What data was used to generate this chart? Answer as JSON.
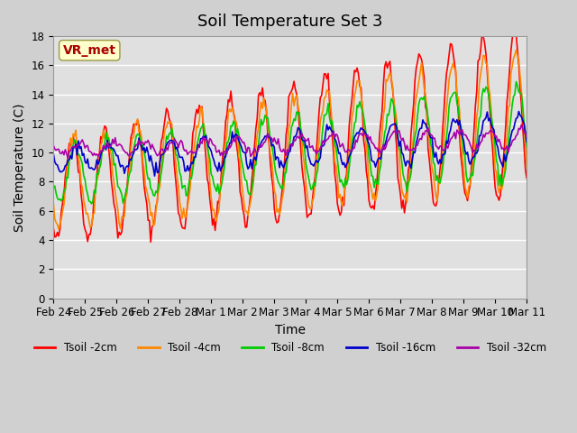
{
  "title": "Soil Temperature Set 3",
  "xlabel": "Time",
  "ylabel": "Soil Temperature (C)",
  "ylim": [
    0,
    18
  ],
  "colors": {
    "Tsoil -2cm": "#ff0000",
    "Tsoil -4cm": "#ff8800",
    "Tsoil -8cm": "#00cc00",
    "Tsoil -16cm": "#0000cc",
    "Tsoil -32cm": "#aa00aa"
  },
  "legend_labels": [
    "Tsoil -2cm",
    "Tsoil -4cm",
    "Tsoil -8cm",
    "Tsoil -16cm",
    "Tsoil -32cm"
  ],
  "xtick_labels": [
    "Feb 24",
    "Feb 25",
    "Feb 26",
    "Feb 27",
    "Feb 28",
    "Mar 1",
    "Mar 2",
    "Mar 3",
    "Mar 4",
    "Mar 5",
    "Mar 6",
    "Mar 7",
    "Mar 8",
    "Mar 9",
    "Mar 10",
    "Mar 11"
  ],
  "annotation_text": "VR_met",
  "annotation_color": "#aa0000",
  "annotation_bg": "#ffffcc",
  "bg_color": "#e0e0e0",
  "grid_color": "#ffffff",
  "title_fontsize": 13,
  "axis_label_fontsize": 10,
  "tick_fontsize": 8.5
}
